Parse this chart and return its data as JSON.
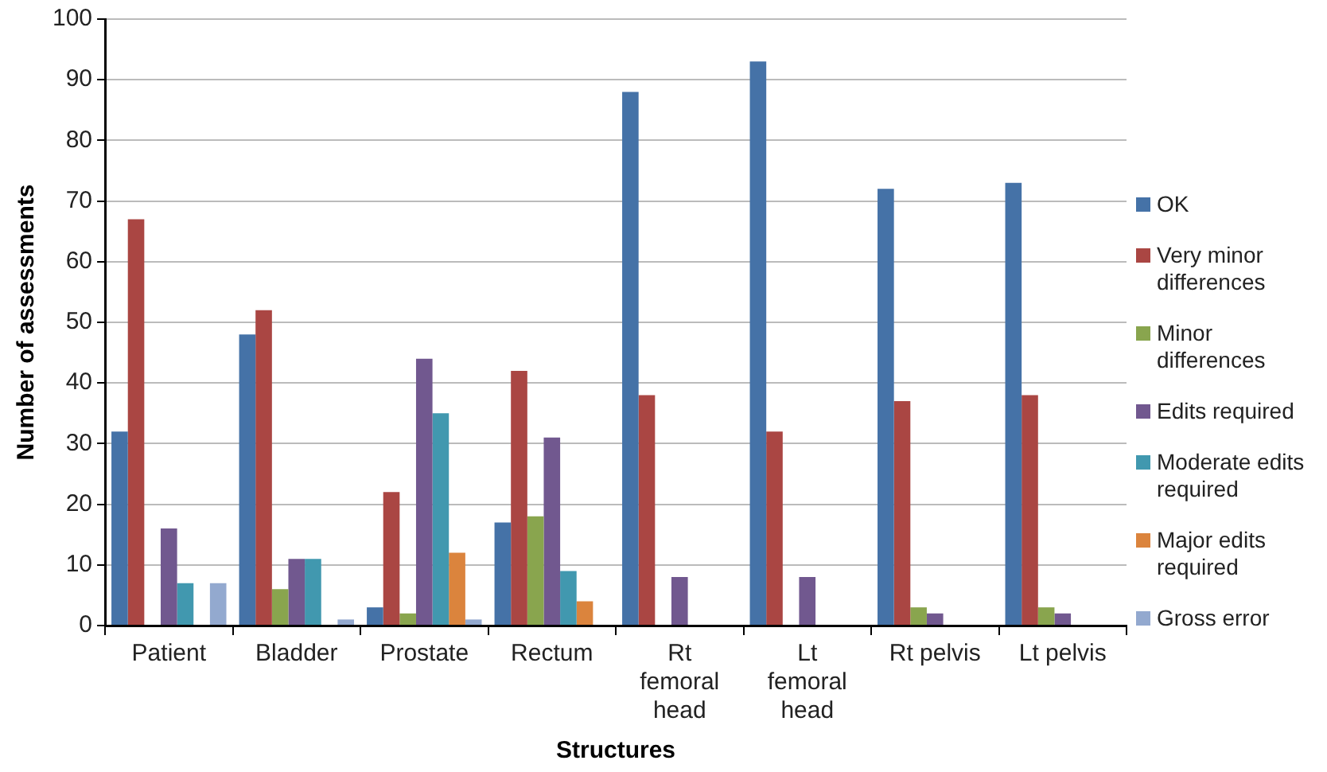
{
  "chart_data": {
    "type": "bar",
    "xlabel": "Structures",
    "ylabel": "Number of assessments",
    "categories": [
      "Patient",
      "Bladder",
      "Prostate",
      "Rectum",
      "Rt femoral head",
      "Lt femoral head",
      "Rt pelvis",
      "Lt pelvis"
    ],
    "series": [
      {
        "name": "OK",
        "color": "#4572a7",
        "values": [
          32,
          48,
          3,
          17,
          88,
          93,
          72,
          73
        ]
      },
      {
        "name": "Very minor differences",
        "color": "#aa4643",
        "values": [
          67,
          52,
          22,
          42,
          38,
          32,
          37,
          38
        ]
      },
      {
        "name": "Minor differences",
        "color": "#89a54e",
        "values": [
          0,
          6,
          2,
          18,
          0,
          0,
          3,
          3
        ]
      },
      {
        "name": "Edits required",
        "color": "#71588f",
        "values": [
          16,
          11,
          44,
          31,
          8,
          8,
          2,
          2
        ]
      },
      {
        "name": "Moderate edits required",
        "color": "#4198af",
        "values": [
          7,
          11,
          35,
          9,
          0,
          0,
          0,
          0
        ]
      },
      {
        "name": "Major edits required",
        "color": "#db843d",
        "values": [
          0,
          0,
          12,
          4,
          0,
          0,
          0,
          0
        ]
      },
      {
        "name": "Gross error",
        "color": "#93a9cf",
        "values": [
          7,
          1,
          1,
          0,
          0,
          0,
          0,
          0
        ]
      }
    ],
    "ylim": [
      0,
      100
    ],
    "yticks": [
      0,
      10,
      20,
      30,
      40,
      50,
      60,
      70,
      80,
      90,
      100
    ],
    "grid": "y",
    "legend": "right"
  }
}
